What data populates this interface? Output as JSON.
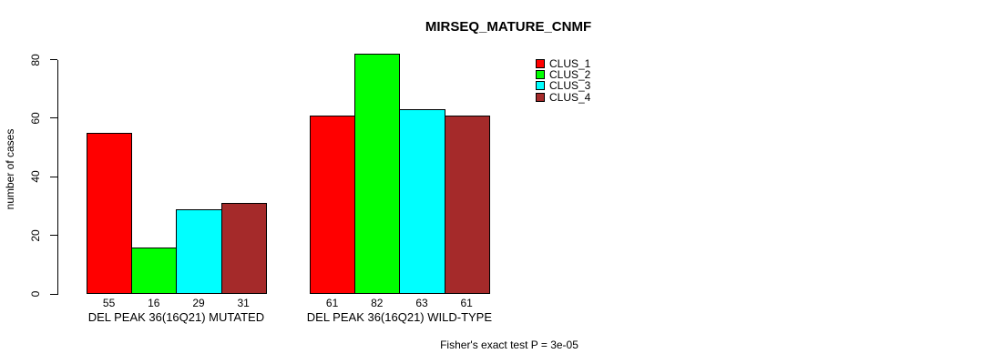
{
  "title": "MIRSEQ_MATURE_CNMF",
  "footnote": "Fisher's exact test P = 3e-05",
  "chart_data": {
    "type": "bar",
    "title": "MIRSEQ_MATURE_CNMF",
    "xlabel": "",
    "ylabel": "number of cases",
    "ylim": [
      0,
      82
    ],
    "yticks": [
      0,
      20,
      40,
      60,
      80
    ],
    "grid": false,
    "legend_position": "top-right",
    "bar_value_labels_shown": true,
    "categories": [
      "DEL PEAK 36(16Q21) MUTATED",
      "DEL PEAK 36(16Q21) WILD-TYPE"
    ],
    "series": [
      {
        "name": "CLUS_1",
        "color": "#FF0000",
        "values": [
          55,
          61
        ]
      },
      {
        "name": "CLUS_2",
        "color": "#00FF00",
        "values": [
          16,
          82
        ]
      },
      {
        "name": "CLUS_3",
        "color": "#00FFFF",
        "values": [
          29,
          63
        ]
      },
      {
        "name": "CLUS_4",
        "color": "#A52A2A",
        "values": [
          31,
          61
        ]
      }
    ],
    "annotation": "Fisher's exact test P = 3e-05"
  }
}
